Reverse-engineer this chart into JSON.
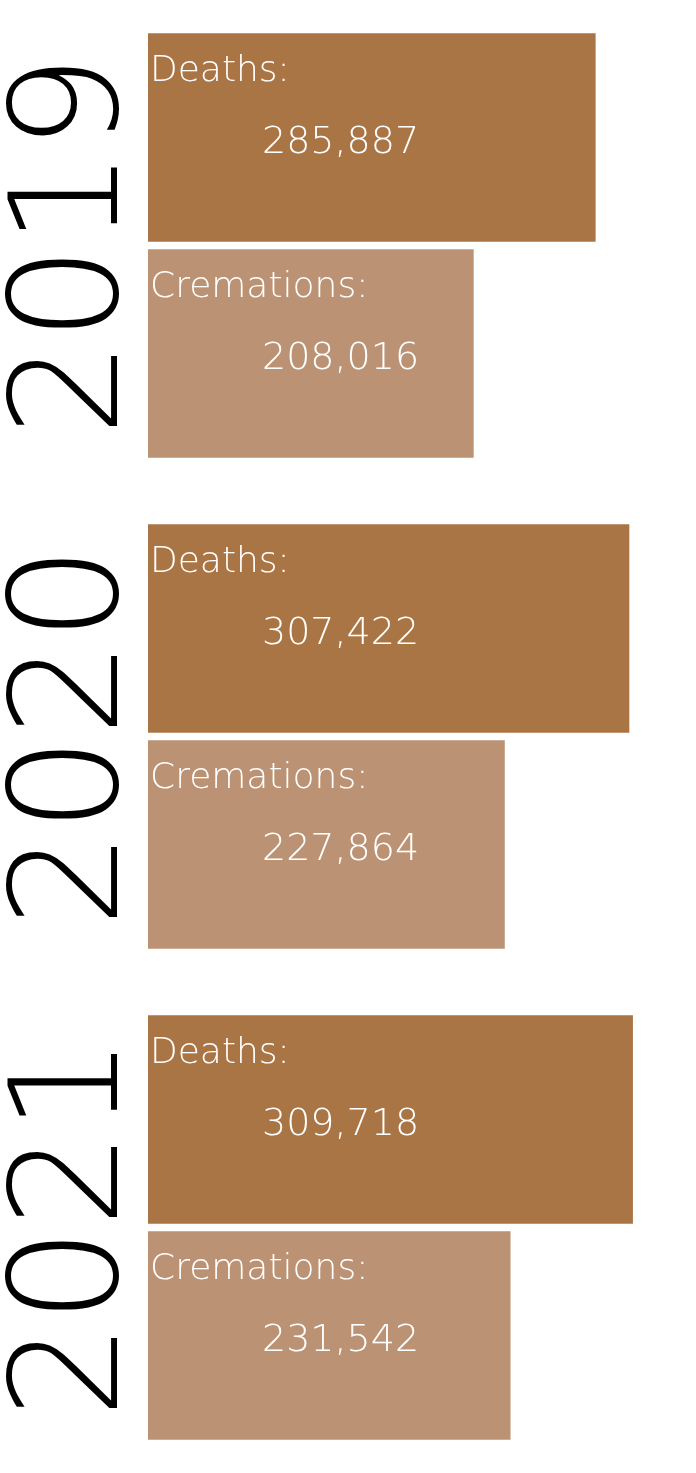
{
  "chart_data": {
    "type": "bar",
    "orientation": "horizontal",
    "categories": [
      "2019",
      "2020",
      "2021"
    ],
    "series": [
      {
        "name": "Deaths:",
        "color": "#aa7545",
        "values": [
          285887,
          307422,
          309718
        ],
        "value_labels": [
          "285,887",
          "307,422",
          "309,718"
        ]
      },
      {
        "name": "Cremations:",
        "color": "#bb9374",
        "values": [
          208016,
          227864,
          231542
        ],
        "value_labels": [
          "208,016",
          "227,864",
          "231,542"
        ]
      }
    ],
    "legend": false,
    "grid": false
  }
}
